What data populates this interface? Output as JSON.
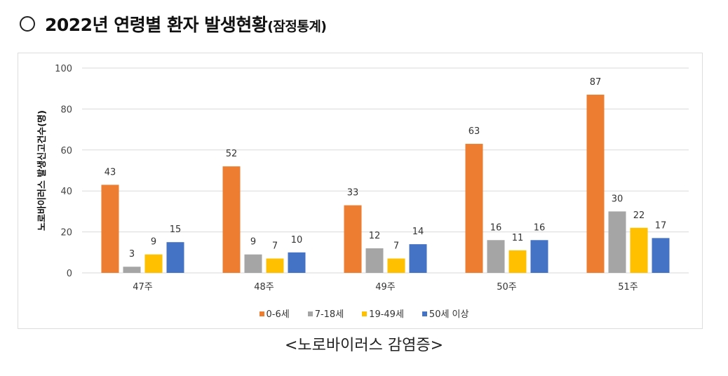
{
  "header": {
    "title": "2022년 연령별 환자 발생현황",
    "title_suffix": "(잠정통계)"
  },
  "caption": "<노로바이러스 감염증>",
  "chart_data": {
    "type": "bar",
    "title": "",
    "ylabel": "노로바이러스 발생신고건수(명)",
    "xlabel": "",
    "ylim": [
      0,
      100
    ],
    "yticks": [
      0,
      20,
      40,
      60,
      80,
      100
    ],
    "grid": true,
    "legend_position": "bottom",
    "categories": [
      "47주",
      "48주",
      "49주",
      "50주",
      "51주"
    ],
    "series": [
      {
        "name": "0-6세",
        "color": "#ED7D31",
        "values": [
          43,
          52,
          33,
          63,
          87
        ]
      },
      {
        "name": "7-18세",
        "color": "#A5A5A5",
        "values": [
          3,
          9,
          12,
          16,
          30
        ]
      },
      {
        "name": "19-49세",
        "color": "#FFC000",
        "values": [
          9,
          7,
          7,
          11,
          22
        ]
      },
      {
        "name": "50세 이상",
        "color": "#4472C4",
        "values": [
          15,
          10,
          14,
          16,
          17
        ]
      }
    ]
  }
}
